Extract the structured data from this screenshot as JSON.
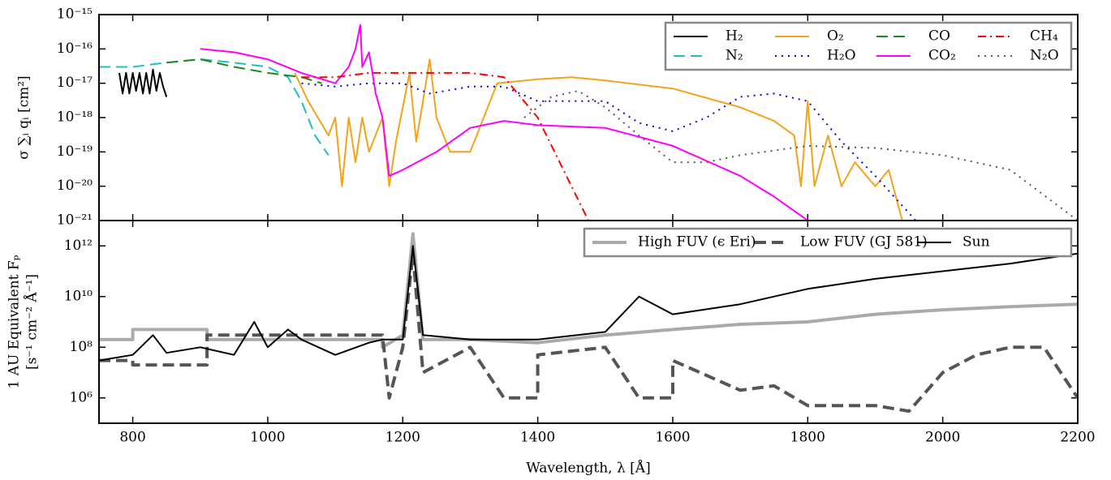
{
  "chart_data": [
    {
      "type": "line",
      "ylabel": "σ ∑ᵢ qᵢ [cm²]",
      "yscale": "log",
      "xlim": [
        750,
        2200
      ],
      "ylim": [
        1e-21,
        1e-15
      ],
      "yticks": [
        {
          "value": 1e-21,
          "label": "10⁻²¹"
        },
        {
          "value": 1e-20,
          "label": "10⁻²⁰"
        },
        {
          "value": 1e-19,
          "label": "10⁻¹⁹"
        },
        {
          "value": 1e-18,
          "label": "10⁻¹⁸"
        },
        {
          "value": 1e-17,
          "label": "10⁻¹⁷"
        },
        {
          "value": 1e-16,
          "label": "10⁻¹⁶"
        },
        {
          "value": 1e-15,
          "label": "10⁻¹⁵"
        }
      ],
      "legend": "upper right",
      "legend_columns": 4,
      "series": [
        {
          "name": "H₂",
          "color": "#000000",
          "dash": "solid",
          "linewidth": 2,
          "x": [
            780,
            785,
            790,
            795,
            800,
            805,
            810,
            815,
            820,
            825,
            830,
            835,
            840,
            845,
            850
          ],
          "values": [
            2e-17,
            5e-18,
            2e-17,
            5e-18,
            2e-17,
            6e-18,
            2e-17,
            5e-18,
            2e-17,
            5e-18,
            2.5e-17,
            6e-18,
            2e-17,
            8e-18,
            4e-18
          ]
        },
        {
          "name": "N₂",
          "color": "#1fbfbf",
          "dash": "dashed",
          "linewidth": 2,
          "x": [
            750,
            800,
            850,
            900,
            950,
            1000,
            1030,
            1050,
            1070,
            1090
          ],
          "values": [
            3e-17,
            3e-17,
            4e-17,
            5e-17,
            4e-17,
            3e-17,
            1.5e-17,
            3e-18,
            3e-19,
            8e-20
          ]
        },
        {
          "name": "O₂",
          "color": "#f5a21b",
          "dash": "solid",
          "linewidth": 2,
          "x": [
            1040,
            1060,
            1090,
            1100,
            1110,
            1120,
            1130,
            1140,
            1150,
            1170,
            1180,
            1190,
            1200,
            1210,
            1220,
            1230,
            1240,
            1250,
            1270,
            1300,
            1320,
            1340,
            1400,
            1450,
            1500,
            1600,
            1700,
            1750,
            1780,
            1790,
            1800,
            1810,
            1830,
            1850,
            1870,
            1900,
            1920,
            1940
          ],
          "values": [
            2e-17,
            3e-18,
            3e-19,
            1e-18,
            1e-20,
            1e-18,
            5e-20,
            1e-18,
            1e-19,
            1e-18,
            1e-20,
            2e-19,
            2e-18,
            2e-17,
            2e-19,
            3e-18,
            5e-17,
            1e-18,
            1e-19,
            1e-19,
            1e-18,
            1e-17,
            1.3e-17,
            1.5e-17,
            1.2e-17,
            7e-18,
            2e-18,
            8e-19,
            3e-19,
            1e-20,
            3e-18,
            1e-20,
            3e-19,
            1e-20,
            5e-20,
            1e-20,
            3e-20,
            1e-21
          ]
        },
        {
          "name": "H₂O",
          "color": "#0000ff",
          "dash": "dotted",
          "linewidth": 2,
          "x": [
            1050,
            1100,
            1150,
            1200,
            1240,
            1300,
            1350,
            1400,
            1500,
            1550,
            1600,
            1650,
            1700,
            1750,
            1800,
            1850,
            1900,
            1960
          ],
          "values": [
            1e-17,
            8e-18,
            1e-17,
            1e-17,
            5e-18,
            8e-18,
            8e-18,
            3e-18,
            3e-18,
            7e-19,
            4e-19,
            1e-18,
            4e-18,
            5e-18,
            3e-18,
            2e-19,
            2e-20,
            1e-21
          ]
        },
        {
          "name": "CO",
          "color": "#1a8a1a",
          "dash": "dashed",
          "linewidth": 2,
          "x": [
            850,
            900,
            950,
            1000,
            1050,
            1080
          ],
          "values": [
            4e-17,
            5e-17,
            3e-17,
            2e-17,
            1.5e-17,
            1e-17
          ]
        },
        {
          "name": "CO₂",
          "color": "#ff00ff",
          "dash": "solid",
          "linewidth": 2,
          "x": [
            900,
            950,
            1000,
            1050,
            1100,
            1120,
            1130,
            1137,
            1140,
            1150,
            1160,
            1170,
            1180,
            1200,
            1250,
            1300,
            1350,
            1400,
            1500,
            1600,
            1700,
            1750,
            1800
          ],
          "values": [
            1e-16,
            8e-17,
            5e-17,
            2e-17,
            1e-17,
            3e-17,
            1e-16,
            5e-16,
            3e-17,
            8e-17,
            5e-18,
            1e-18,
            2e-20,
            3e-20,
            1e-19,
            5e-19,
            8e-19,
            6e-19,
            5e-19,
            1.5e-19,
            2e-20,
            5e-21,
            1e-21
          ]
        },
        {
          "name": "CH₄",
          "color": "#ff0000",
          "dash": "dashdot",
          "linewidth": 2,
          "x": [
            1050,
            1100,
            1150,
            1200,
            1250,
            1300,
            1350,
            1400,
            1450,
            1475
          ],
          "values": [
            1.5e-17,
            1.5e-17,
            2e-17,
            2e-17,
            2e-17,
            2e-17,
            1.5e-17,
            1e-18,
            1e-20,
            1e-21
          ]
        },
        {
          "name": "N₂O",
          "color": "#555555",
          "dash": "dotted",
          "linewidth": 2,
          "x": [
            1380,
            1420,
            1460,
            1500,
            1550,
            1600,
            1650,
            1700,
            1800,
            1900,
            2000,
            2100,
            2200
          ],
          "values": [
            1e-18,
            4e-18,
            6e-18,
            2e-18,
            3e-19,
            5e-20,
            5e-20,
            8e-20,
            1.5e-19,
            1.3e-19,
            8e-20,
            3e-20,
            1e-21
          ]
        }
      ]
    },
    {
      "type": "line",
      "xlabel": "Wavelength, λ [Å]",
      "ylabel": [
        "1 AU Equivalent Fₚ",
        "[s⁻¹ cm⁻² Å⁻¹]"
      ],
      "yscale": "log",
      "xlim": [
        750,
        2200
      ],
      "ylim": [
        100000.0,
        10000000000000.0
      ],
      "xticks": [
        800,
        1000,
        1200,
        1400,
        1600,
        1800,
        2000,
        2200
      ],
      "yticks": [
        {
          "value": 1000000.0,
          "label": "10⁶"
        },
        {
          "value": 100000000.0,
          "label": "10⁸"
        },
        {
          "value": 10000000000.0,
          "label": "10¹⁰"
        },
        {
          "value": 1000000000000.0,
          "label": "10¹²"
        }
      ],
      "legend": "upper right",
      "legend_columns": 3,
      "series": [
        {
          "name": "High FUV (ϵ Eri)",
          "color": "#aaaaaa",
          "dash": "solid",
          "linewidth": 4,
          "x": [
            750,
            800,
            800,
            910,
            910,
            1170,
            1170,
            1200,
            1215,
            1230,
            1300,
            1400,
            1500,
            1600,
            1700,
            1800,
            1900,
            2000,
            2100,
            2200
          ],
          "values": [
            200000000.0,
            200000000.0,
            500000000.0,
            500000000.0,
            200000000.0,
            200000000.0,
            100000000.0,
            300000000.0,
            3000000000000.0,
            200000000.0,
            200000000.0,
            150000000.0,
            300000000.0,
            500000000.0,
            800000000.0,
            1000000000.0,
            2000000000.0,
            3000000000.0,
            4000000000.0,
            5000000000.0
          ]
        },
        {
          "name": "Low FUV (GJ 581)",
          "color": "#555555",
          "dash": "dashed",
          "linewidth": 4,
          "x": [
            750,
            800,
            800,
            910,
            910,
            1170,
            1180,
            1200,
            1215,
            1230,
            1300,
            1350,
            1400,
            1400,
            1500,
            1550,
            1600,
            1600,
            1700,
            1750,
            1800,
            1900,
            1950,
            2000,
            2050,
            2100,
            2150,
            2200
          ],
          "values": [
            30000000.0,
            30000000.0,
            20000000.0,
            20000000.0,
            300000000.0,
            300000000.0,
            1000000.0,
            100000000.0,
            500000000000.0,
            10000000.0,
            100000000.0,
            1000000.0,
            1000000.0,
            50000000.0,
            100000000.0,
            1000000.0,
            1000000.0,
            30000000.0,
            2000000.0,
            3000000.0,
            500000.0,
            500000.0,
            300000.0,
            10000000.0,
            50000000.0,
            100000000.0,
            100000000.0,
            1000000.0
          ]
        },
        {
          "name": "Sun",
          "color": "#000000",
          "dash": "solid",
          "linewidth": 2,
          "x": [
            750,
            800,
            830,
            850,
            900,
            950,
            980,
            1000,
            1030,
            1050,
            1100,
            1150,
            1170,
            1200,
            1215,
            1230,
            1300,
            1400,
            1500,
            1550,
            1600,
            1700,
            1800,
            1900,
            2000,
            2100,
            2200
          ],
          "values": [
            30000000.0,
            50000000.0,
            300000000.0,
            60000000.0,
            100000000.0,
            50000000.0,
            1000000000.0,
            100000000.0,
            500000000.0,
            200000000.0,
            50000000.0,
            150000000.0,
            200000000.0,
            200000000.0,
            1000000000000.0,
            300000000.0,
            200000000.0,
            200000000.0,
            400000000.0,
            10000000000.0,
            2000000000.0,
            5000000000.0,
            20000000000.0,
            50000000000.0,
            100000000000.0,
            200000000000.0,
            500000000000.0
          ]
        }
      ]
    }
  ]
}
